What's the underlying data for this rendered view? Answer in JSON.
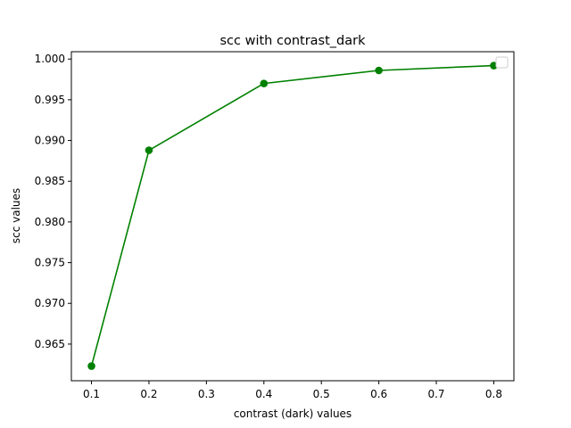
{
  "chart_data": {
    "type": "line",
    "title": "scc with contrast_dark",
    "xlabel": "contrast (dark) values",
    "ylabel": "scc values",
    "x": [
      0.1,
      0.2,
      0.4,
      0.6,
      0.8
    ],
    "series": [
      {
        "values": [
          0.9623,
          0.9888,
          0.997,
          0.9986,
          0.9992
        ],
        "color": "#008000",
        "marker": "circle"
      }
    ],
    "xlim": [
      0.065,
      0.835
    ],
    "ylim": [
      0.9605,
      1.0009
    ],
    "xticks": [
      0.1,
      0.2,
      0.3,
      0.4,
      0.5,
      0.6,
      0.7,
      0.8
    ],
    "xtick_labels": [
      "0.1",
      "0.2",
      "0.3",
      "0.4",
      "0.5",
      "0.6",
      "0.7",
      "0.8"
    ],
    "yticks": [
      0.965,
      0.97,
      0.975,
      0.98,
      0.985,
      0.99,
      0.995,
      1.0
    ],
    "ytick_labels": [
      "0.965",
      "0.970",
      "0.975",
      "0.980",
      "0.985",
      "0.990",
      "0.995",
      "1.000"
    ],
    "grid": false,
    "legend": {
      "position": "top-right",
      "entries": []
    }
  }
}
